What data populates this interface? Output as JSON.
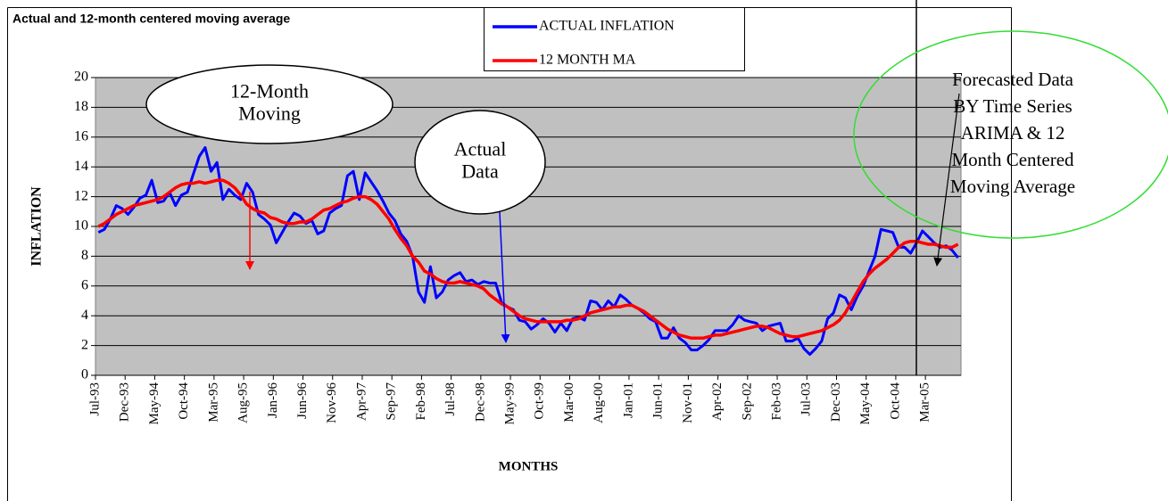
{
  "chart_data": {
    "type": "line",
    "title": "Actual and 12-month centered moving average",
    "y_label": "INFLATION",
    "x_label": "MONTHS",
    "categories": [
      "Jul-93",
      null,
      null,
      null,
      null,
      "Dec-93",
      null,
      null,
      null,
      null,
      "May-94",
      null,
      null,
      null,
      null,
      "Oct-94",
      null,
      null,
      null,
      null,
      "Mar-95",
      null,
      null,
      null,
      null,
      "Aug-95",
      null,
      null,
      null,
      null,
      "Jan-96",
      null,
      null,
      null,
      null,
      "Jun-96",
      null,
      null,
      null,
      null,
      "Nov-96",
      null,
      null,
      null,
      null,
      "Apr-97",
      null,
      null,
      null,
      null,
      "Sep-97",
      null,
      null,
      null,
      null,
      "Feb-98",
      null,
      null,
      null,
      null,
      "Jul-98",
      null,
      null,
      null,
      null,
      "Dec-98",
      null,
      null,
      null,
      null,
      "May-99",
      null,
      null,
      null,
      null,
      "Oct-99",
      null,
      null,
      null,
      null,
      "Mar-00",
      null,
      null,
      null,
      null,
      "Aug-00",
      null,
      null,
      null,
      null,
      "Jan-01",
      null,
      null,
      null,
      null,
      "Jun-01",
      null,
      null,
      null,
      null,
      "Nov-01",
      null,
      null,
      null,
      null,
      "Apr-02",
      null,
      null,
      null,
      null,
      "Sep-02",
      null,
      null,
      null,
      null,
      "Feb-03",
      null,
      null,
      null,
      null,
      "Jul-03",
      null,
      null,
      null,
      null,
      "Dec-03",
      null,
      null,
      null,
      null,
      "May-04",
      null,
      null,
      null,
      null,
      "Oct-04",
      null,
      null,
      null,
      null,
      "Mar-05",
      null,
      null,
      null,
      null,
      null
    ],
    "series": [
      {
        "name": "ACTUAL INFLATION",
        "color": "#0000ff",
        "values": [
          9.6,
          9.8,
          10.5,
          11.4,
          11.2,
          10.8,
          11.3,
          11.9,
          12.1,
          13.1,
          11.6,
          11.7,
          12.3,
          11.4,
          12.1,
          12.3,
          13.5,
          14.7,
          15.3,
          13.7,
          14.3,
          11.8,
          12.5,
          12.1,
          11.8,
          12.9,
          12.3,
          10.8,
          10.5,
          10.1,
          8.9,
          9.6,
          10.3,
          10.9,
          10.7,
          10.2,
          10.4,
          9.5,
          9.7,
          10.9,
          11.2,
          11.4,
          13.4,
          13.7,
          11.8,
          13.6,
          13.0,
          12.4,
          11.7,
          10.9,
          10.4,
          9.5,
          9.0,
          8.0,
          5.6,
          4.9,
          7.3,
          5.2,
          5.6,
          6.4,
          6.7,
          6.9,
          6.3,
          6.4,
          6.1,
          6.3,
          6.2,
          6.2,
          4.9,
          4.6,
          4.4,
          3.7,
          3.6,
          3.1,
          3.4,
          3.8,
          3.5,
          2.9,
          3.5,
          3.0,
          3.8,
          3.9,
          3.7,
          5.0,
          4.9,
          4.4,
          5.0,
          4.6,
          5.4,
          5.1,
          4.7,
          4.5,
          4.2,
          3.8,
          3.6,
          2.5,
          2.5,
          3.2,
          2.5,
          2.2,
          1.7,
          1.7,
          2.0,
          2.4,
          3.0,
          3.0,
          3.0,
          3.4,
          4.0,
          3.7,
          3.6,
          3.5,
          3.0,
          3.3,
          3.4,
          3.5,
          2.3,
          2.3,
          2.5,
          1.8,
          1.4,
          1.8,
          2.3,
          3.8,
          4.2,
          5.4,
          5.2,
          4.4,
          5.3,
          6.0,
          7.0,
          8.0,
          9.8,
          9.7,
          9.6,
          8.6,
          8.6,
          8.2,
          8.9,
          9.7,
          9.3,
          8.9,
          8.6,
          8.7,
          8.4,
          7.9
        ]
      },
      {
        "name": "12 MONTH MA",
        "color": "#ff0000",
        "values": [
          10.0,
          10.2,
          10.5,
          10.8,
          11.0,
          11.2,
          11.4,
          11.5,
          11.6,
          11.7,
          11.8,
          12.0,
          12.3,
          12.6,
          12.8,
          12.9,
          12.9,
          13.0,
          12.9,
          13.0,
          13.1,
          13.1,
          12.9,
          12.6,
          12.1,
          11.5,
          11.2,
          11.0,
          10.9,
          10.6,
          10.5,
          10.3,
          10.2,
          10.2,
          10.3,
          10.3,
          10.5,
          10.8,
          11.1,
          11.2,
          11.4,
          11.6,
          11.7,
          11.9,
          12.0,
          12.0,
          11.8,
          11.5,
          11.0,
          10.5,
          9.8,
          9.2,
          8.7,
          8.0,
          7.6,
          7.0,
          6.8,
          6.5,
          6.3,
          6.2,
          6.2,
          6.3,
          6.2,
          6.1,
          6.0,
          5.8,
          5.4,
          5.1,
          4.8,
          4.6,
          4.3,
          4.0,
          3.8,
          3.7,
          3.6,
          3.6,
          3.6,
          3.6,
          3.6,
          3.7,
          3.7,
          3.8,
          4.0,
          4.2,
          4.3,
          4.4,
          4.5,
          4.6,
          4.6,
          4.7,
          4.7,
          4.5,
          4.3,
          4.0,
          3.7,
          3.4,
          3.1,
          2.9,
          2.7,
          2.6,
          2.5,
          2.5,
          2.5,
          2.6,
          2.7,
          2.7,
          2.8,
          2.9,
          3.0,
          3.1,
          3.2,
          3.3,
          3.3,
          3.2,
          3.0,
          2.8,
          2.7,
          2.6,
          2.6,
          2.7,
          2.8,
          2.9,
          3.0,
          3.2,
          3.4,
          3.7,
          4.2,
          4.9,
          5.6,
          6.3,
          6.8,
          7.2,
          7.5,
          7.8,
          8.2,
          8.6,
          8.9,
          9.0,
          9.0,
          8.9,
          8.8,
          8.8,
          8.7,
          8.6,
          8.6,
          8.8
        ]
      }
    ],
    "ylim": [
      0,
      20
    ],
    "yticks": [
      0,
      2,
      4,
      6,
      8,
      10,
      12,
      14,
      16,
      18,
      20
    ],
    "grid": true,
    "plot_color": "#c0c0c0",
    "annotations": [
      {
        "lines": [
          "12-Month",
          "Moving"
        ]
      },
      {
        "lines": [
          "Actual",
          "Data"
        ]
      },
      {
        "lines": [
          "Forecasted   Data",
          "BY Time Series",
          "ARIMA & 12",
          "Month Centered",
          "Moving Average"
        ]
      }
    ]
  }
}
